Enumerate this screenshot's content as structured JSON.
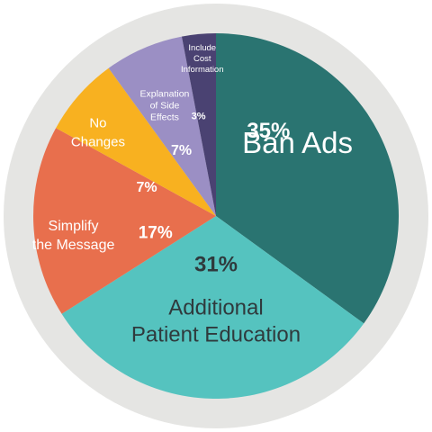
{
  "chart_data": {
    "type": "pie",
    "title": "",
    "categories": [
      "Ban Ads",
      "Additional Patient Education",
      "Simplify the Message",
      "No Changes",
      "Explanation of Side Effects",
      "Include Cost Information"
    ],
    "values": [
      35,
      31,
      17,
      7,
      7,
      3
    ],
    "value_labels": [
      "35%",
      "31%",
      "17%",
      "7%",
      "7%",
      "3%"
    ],
    "label_lines": [
      [
        "Ban Ads"
      ],
      [
        "Additional",
        "Patient Education"
      ],
      [
        "Simplify",
        "the Message"
      ],
      [
        "No",
        "Changes"
      ],
      [
        "Explanation",
        "of Side",
        "Effects"
      ],
      [
        "Include",
        "Cost",
        "Information"
      ]
    ],
    "colors": [
      "#2a7471",
      "#55c3bf",
      "#e86f4d",
      "#f8b120",
      "#9b8fc4",
      "#4a4272"
    ],
    "ring_color": "#e5e5e3",
    "start_angle": "12 o'clock",
    "direction": "clockwise"
  }
}
